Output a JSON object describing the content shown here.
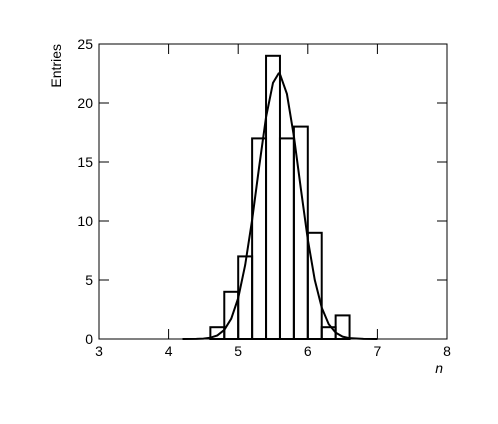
{
  "chart_data": {
    "type": "histogram",
    "xlabel": "n",
    "ylabel": "Entries",
    "bins": [
      3.0,
      3.2,
      3.4,
      3.6,
      3.8,
      4.0,
      4.2,
      4.4,
      4.6,
      4.8,
      5.0,
      5.2,
      5.4,
      5.6,
      5.8,
      6.0,
      6.2,
      6.4,
      6.6,
      6.8,
      7.0,
      7.2,
      7.4,
      7.6,
      7.8,
      8.0
    ],
    "counts": [
      0,
      0,
      0,
      0,
      0,
      0,
      0,
      0,
      1,
      4,
      7,
      17,
      24,
      17,
      18,
      9,
      1,
      2,
      0,
      0,
      0,
      0,
      0,
      0,
      0
    ],
    "color": "#000000",
    "fit": {
      "color": "#000000",
      "x": [
        4.2,
        4.4,
        4.5,
        4.6,
        4.7,
        4.8,
        4.9,
        5.0,
        5.1,
        5.2,
        5.3,
        5.4,
        5.5,
        5.58,
        5.6,
        5.7,
        5.8,
        5.9,
        6.0,
        6.1,
        6.2,
        6.3,
        6.4,
        6.5,
        6.6,
        6.8,
        7.0
      ],
      "values": [
        0.0,
        0.01,
        0.03,
        0.11,
        0.3,
        0.77,
        1.72,
        3.47,
        6.26,
        10.09,
        14.55,
        18.8,
        21.71,
        22.5,
        22.45,
        20.77,
        17.19,
        12.74,
        8.44,
        5.01,
        2.66,
        1.26,
        0.54,
        0.2,
        0.07,
        0.01,
        0.0
      ]
    },
    "xlim": [
      3,
      8
    ],
    "ylim": [
      0,
      25
    ],
    "xticks": [
      3,
      4,
      5,
      6,
      7,
      8
    ],
    "yticks": [
      0,
      5,
      10,
      15,
      20,
      25
    ]
  }
}
